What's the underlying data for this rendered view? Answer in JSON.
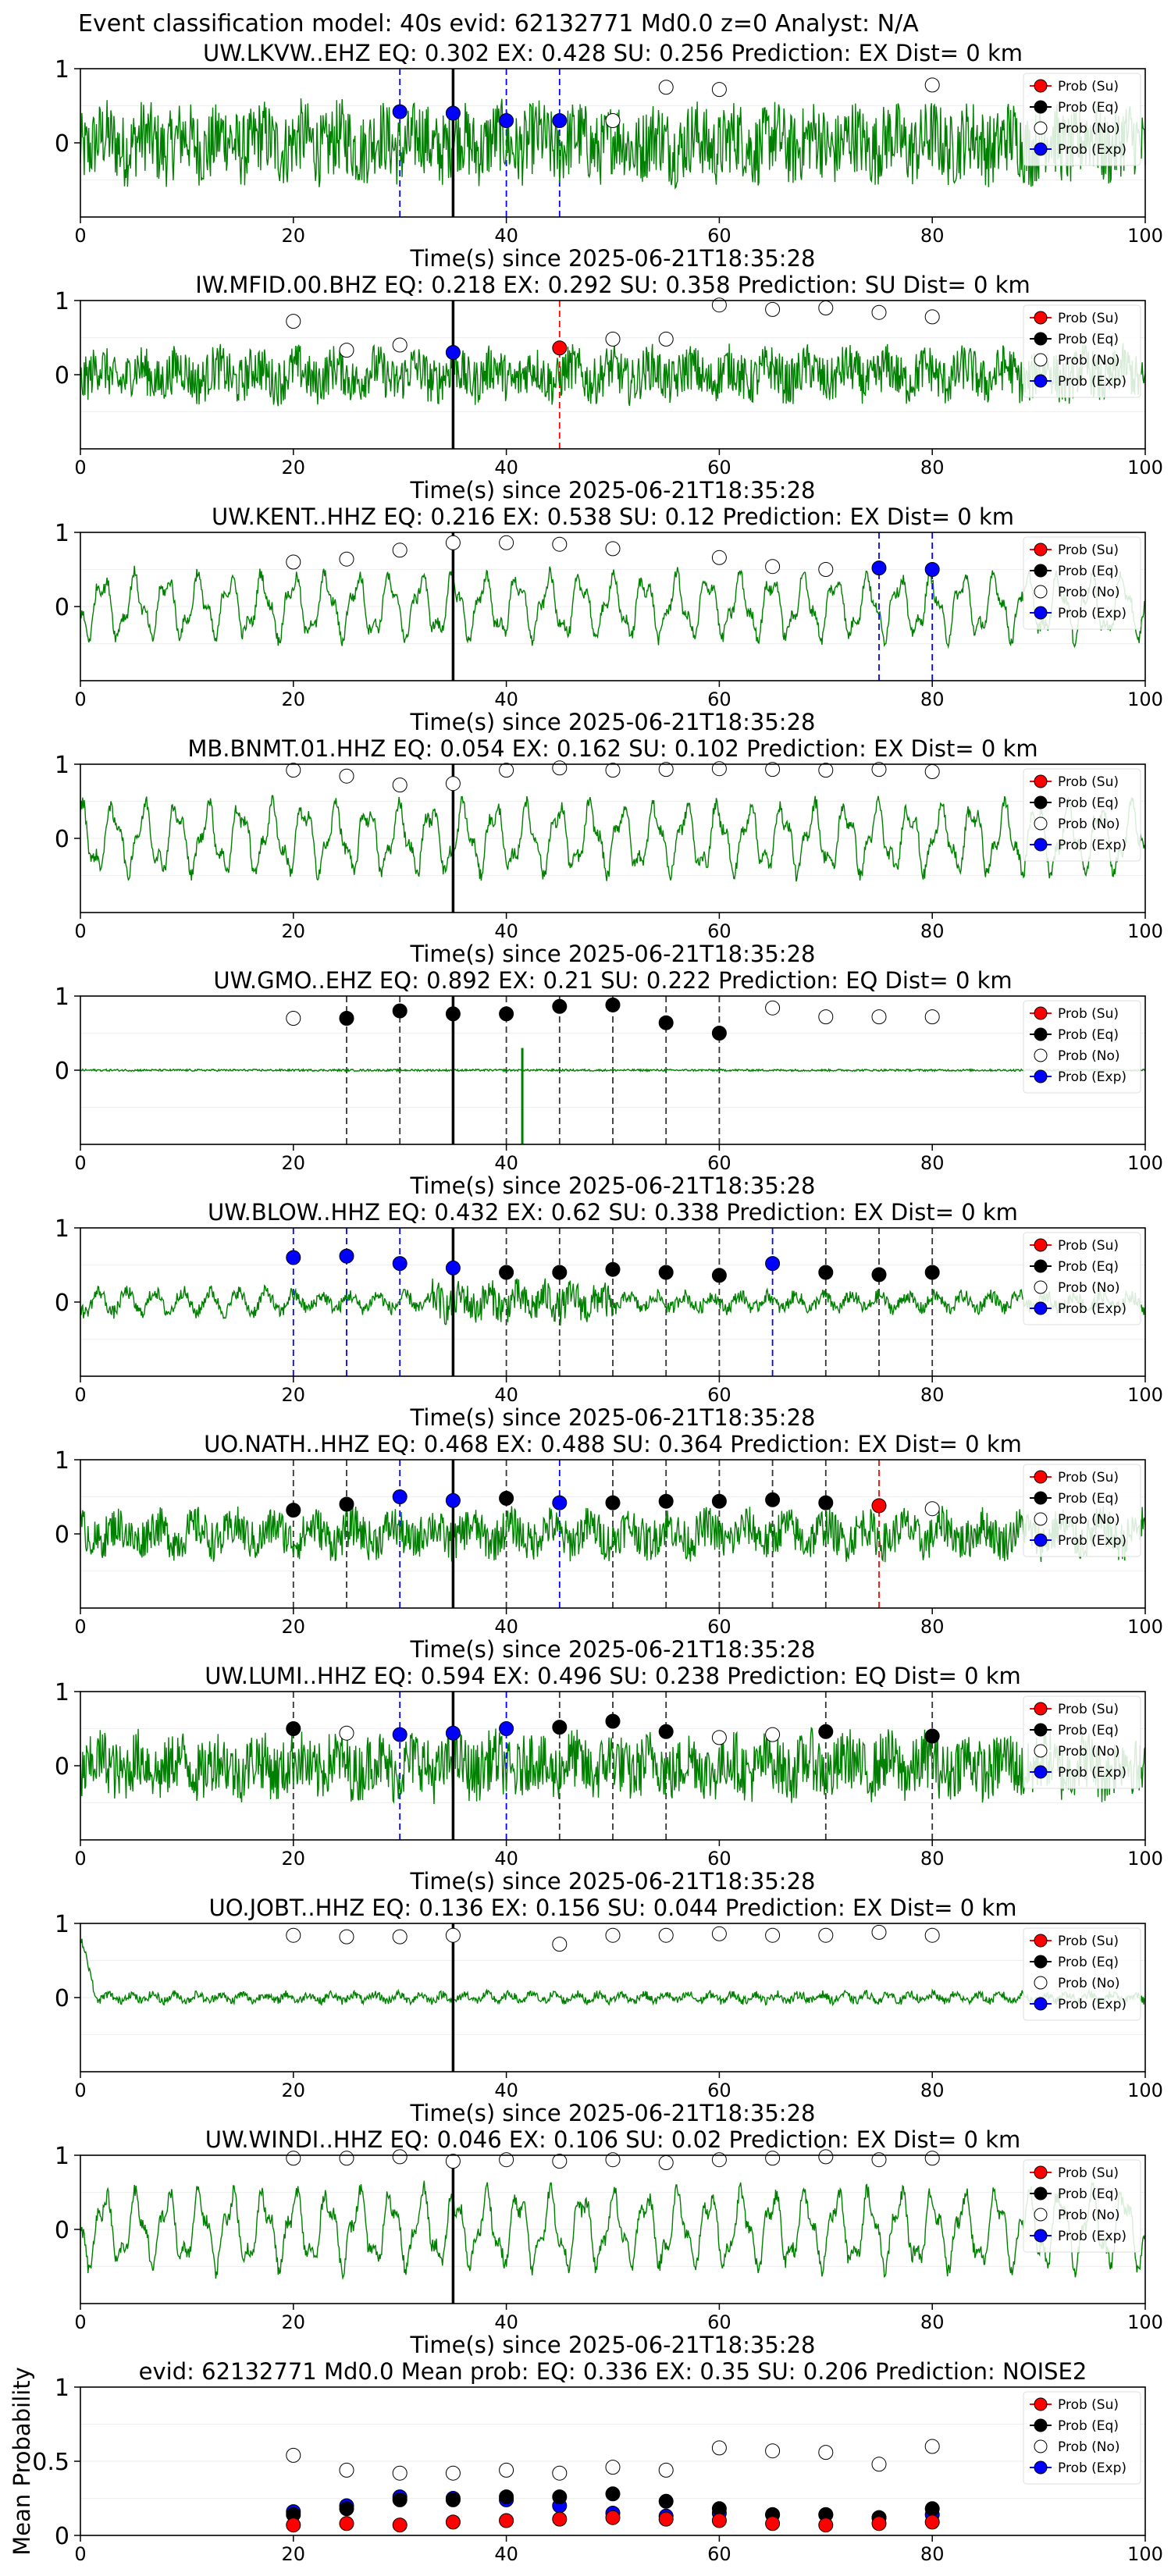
{
  "figure": {
    "title": "Event classification model: 40s evid: 62132771 Md0.0 z=0 Analyst: N/A",
    "legend_labels": [
      "Prob (Su)",
      "Prob (Eq)",
      "Prob (No)",
      "Prob (Exp)"
    ]
  },
  "colors": {
    "trace": "#008000",
    "su": "#ff0000",
    "eq": "#000000",
    "no": "#ffffff",
    "exp": "#0000ff"
  },
  "chart_data": [
    {
      "type": "line",
      "title": "UW.LKVW..EHZ   EQ: 0.302  EX: 0.428  SU: 0.256   Prediction: EX    Dist= 0 km",
      "xlabel": "Time(s) since 2025-06-21T18:35:28",
      "xlim": [
        0,
        100
      ],
      "xticks": [
        0,
        20,
        40,
        60,
        80,
        100
      ],
      "ylim": [
        -1,
        1
      ],
      "yticks": [
        1,
        0
      ],
      "pick_time": 35,
      "waveform": {
        "style": "noise",
        "amp": 0.55
      },
      "points": [
        {
          "x": 30,
          "y": 0.42,
          "class": "exp"
        },
        {
          "x": 35,
          "y": 0.4,
          "class": "exp"
        },
        {
          "x": 40,
          "y": 0.3,
          "class": "exp"
        },
        {
          "x": 45,
          "y": 0.3,
          "class": "exp"
        },
        {
          "x": 50,
          "y": 0.3,
          "class": "no"
        },
        {
          "x": 55,
          "y": 0.75,
          "class": "no"
        },
        {
          "x": 60,
          "y": 0.72,
          "class": "no"
        },
        {
          "x": 80,
          "y": 0.78,
          "class": "no"
        }
      ]
    },
    {
      "type": "line",
      "title": "IW.MFID.00.BHZ   EQ: 0.218  EX: 0.292  SU: 0.358   Prediction: SU    Dist= 0 km",
      "xlabel": "Time(s) since 2025-06-21T18:35:28",
      "xlim": [
        0,
        100
      ],
      "xticks": [
        0,
        20,
        40,
        60,
        80,
        100
      ],
      "ylim": [
        -1,
        1
      ],
      "yticks": [
        1,
        0
      ],
      "pick_time": 35,
      "waveform": {
        "style": "noise",
        "amp": 0.35
      },
      "points": [
        {
          "x": 20,
          "y": 0.72,
          "class": "no"
        },
        {
          "x": 25,
          "y": 0.33,
          "class": "no"
        },
        {
          "x": 30,
          "y": 0.4,
          "class": "no"
        },
        {
          "x": 35,
          "y": 0.3,
          "class": "exp"
        },
        {
          "x": 45,
          "y": 0.36,
          "class": "su"
        },
        {
          "x": 50,
          "y": 0.48,
          "class": "no"
        },
        {
          "x": 55,
          "y": 0.48,
          "class": "no"
        },
        {
          "x": 60,
          "y": 0.94,
          "class": "no"
        },
        {
          "x": 65,
          "y": 0.88,
          "class": "no"
        },
        {
          "x": 70,
          "y": 0.9,
          "class": "no"
        },
        {
          "x": 75,
          "y": 0.84,
          "class": "no"
        },
        {
          "x": 80,
          "y": 0.78,
          "class": "no"
        }
      ]
    },
    {
      "type": "line",
      "title": "UW.KENT..HHZ   EQ: 0.216  EX: 0.538  SU: 0.12   Prediction: EX    Dist= 0 km",
      "xlabel": "Time(s) since 2025-06-21T18:35:28",
      "xlim": [
        0,
        100
      ],
      "xticks": [
        0,
        20,
        40,
        60,
        80,
        100
      ],
      "ylim": [
        -1,
        1
      ],
      "yticks": [
        1,
        0
      ],
      "pick_time": 35,
      "waveform": {
        "style": "wave",
        "amp": 0.5
      },
      "points": [
        {
          "x": 20,
          "y": 0.6,
          "class": "no"
        },
        {
          "x": 25,
          "y": 0.64,
          "class": "no"
        },
        {
          "x": 30,
          "y": 0.76,
          "class": "no"
        },
        {
          "x": 35,
          "y": 0.86,
          "class": "no"
        },
        {
          "x": 40,
          "y": 0.86,
          "class": "no"
        },
        {
          "x": 45,
          "y": 0.84,
          "class": "no"
        },
        {
          "x": 50,
          "y": 0.78,
          "class": "no"
        },
        {
          "x": 60,
          "y": 0.66,
          "class": "no"
        },
        {
          "x": 65,
          "y": 0.54,
          "class": "no"
        },
        {
          "x": 70,
          "y": 0.5,
          "class": "no"
        },
        {
          "x": 75,
          "y": 0.52,
          "class": "exp"
        },
        {
          "x": 80,
          "y": 0.5,
          "class": "exp"
        }
      ]
    },
    {
      "type": "line",
      "title": "MB.BNMT.01.HHZ   EQ: 0.054  EX: 0.162  SU: 0.102   Prediction: EX    Dist= 0 km",
      "xlabel": "Time(s) since 2025-06-21T18:35:28",
      "xlim": [
        0,
        100
      ],
      "xticks": [
        0,
        20,
        40,
        60,
        80,
        100
      ],
      "ylim": [
        -1,
        1
      ],
      "yticks": [
        1,
        0
      ],
      "pick_time": 35,
      "waveform": {
        "style": "wave",
        "amp": 0.55
      },
      "points": [
        {
          "x": 20,
          "y": 0.92,
          "class": "no"
        },
        {
          "x": 25,
          "y": 0.84,
          "class": "no"
        },
        {
          "x": 30,
          "y": 0.72,
          "class": "no"
        },
        {
          "x": 35,
          "y": 0.74,
          "class": "no"
        },
        {
          "x": 40,
          "y": 0.92,
          "class": "no"
        },
        {
          "x": 45,
          "y": 0.95,
          "class": "no"
        },
        {
          "x": 50,
          "y": 0.92,
          "class": "no"
        },
        {
          "x": 55,
          "y": 0.93,
          "class": "no"
        },
        {
          "x": 60,
          "y": 0.94,
          "class": "no"
        },
        {
          "x": 65,
          "y": 0.93,
          "class": "no"
        },
        {
          "x": 70,
          "y": 0.92,
          "class": "no"
        },
        {
          "x": 75,
          "y": 0.93,
          "class": "no"
        },
        {
          "x": 80,
          "y": 0.9,
          "class": "no"
        }
      ]
    },
    {
      "type": "line",
      "title": "UW.GMO..EHZ   EQ: 0.892  EX: 0.21  SU: 0.222   Prediction: EQ    Dist= 0 km",
      "xlabel": "Time(s) since 2025-06-21T18:35:28",
      "xlim": [
        0,
        100
      ],
      "xticks": [
        0,
        20,
        40,
        60,
        80,
        100
      ],
      "ylim": [
        -1,
        1
      ],
      "yticks": [
        1,
        0
      ],
      "pick_time": 35,
      "waveform": {
        "style": "flat",
        "amp": 0.03,
        "spike": 41.5
      },
      "points": [
        {
          "x": 20,
          "y": 0.7,
          "class": "no"
        },
        {
          "x": 25,
          "y": 0.7,
          "class": "eq"
        },
        {
          "x": 30,
          "y": 0.8,
          "class": "eq"
        },
        {
          "x": 35,
          "y": 0.76,
          "class": "eq"
        },
        {
          "x": 40,
          "y": 0.76,
          "class": "eq"
        },
        {
          "x": 45,
          "y": 0.86,
          "class": "eq"
        },
        {
          "x": 50,
          "y": 0.88,
          "class": "eq"
        },
        {
          "x": 55,
          "y": 0.64,
          "class": "eq"
        },
        {
          "x": 60,
          "y": 0.5,
          "class": "eq"
        },
        {
          "x": 65,
          "y": 0.84,
          "class": "no"
        },
        {
          "x": 70,
          "y": 0.72,
          "class": "no"
        },
        {
          "x": 75,
          "y": 0.72,
          "class": "no"
        },
        {
          "x": 80,
          "y": 0.72,
          "class": "no"
        }
      ]
    },
    {
      "type": "line",
      "title": "UW.BLOW..HHZ   EQ: 0.432  EX: 0.62  SU: 0.338   Prediction: EX    Dist= 0 km",
      "xlabel": "Time(s) since 2025-06-21T18:35:28",
      "xlim": [
        0,
        100
      ],
      "xticks": [
        0,
        20,
        40,
        60,
        80,
        100
      ],
      "ylim": [
        -1,
        1
      ],
      "yticks": [
        1,
        0
      ],
      "pick_time": 35,
      "waveform": {
        "style": "burst",
        "amp": 0.2
      },
      "points": [
        {
          "x": 20,
          "y": 0.6,
          "class": "exp"
        },
        {
          "x": 25,
          "y": 0.62,
          "class": "exp"
        },
        {
          "x": 30,
          "y": 0.52,
          "class": "exp"
        },
        {
          "x": 35,
          "y": 0.46,
          "class": "exp"
        },
        {
          "x": 40,
          "y": 0.4,
          "class": "eq"
        },
        {
          "x": 45,
          "y": 0.4,
          "class": "eq"
        },
        {
          "x": 50,
          "y": 0.44,
          "class": "eq"
        },
        {
          "x": 55,
          "y": 0.4,
          "class": "eq"
        },
        {
          "x": 60,
          "y": 0.36,
          "class": "eq"
        },
        {
          "x": 65,
          "y": 0.52,
          "class": "exp"
        },
        {
          "x": 70,
          "y": 0.4,
          "class": "eq"
        },
        {
          "x": 75,
          "y": 0.37,
          "class": "eq"
        },
        {
          "x": 80,
          "y": 0.4,
          "class": "eq"
        }
      ]
    },
    {
      "type": "line",
      "title": "UO.NATH..HHZ   EQ: 0.468  EX: 0.488  SU: 0.364   Prediction: EX    Dist= 0 km",
      "xlabel": "Time(s) since 2025-06-21T18:35:28",
      "xlim": [
        0,
        100
      ],
      "xticks": [
        0,
        20,
        40,
        60,
        80,
        100
      ],
      "ylim": [
        -1,
        1
      ],
      "yticks": [
        1,
        0
      ],
      "pick_time": 35,
      "waveform": {
        "style": "noise",
        "amp": 0.3
      },
      "points": [
        {
          "x": 20,
          "y": 0.32,
          "class": "eq"
        },
        {
          "x": 25,
          "y": 0.4,
          "class": "eq"
        },
        {
          "x": 30,
          "y": 0.5,
          "class": "exp"
        },
        {
          "x": 35,
          "y": 0.45,
          "class": "exp"
        },
        {
          "x": 40,
          "y": 0.48,
          "class": "eq"
        },
        {
          "x": 45,
          "y": 0.42,
          "class": "exp"
        },
        {
          "x": 50,
          "y": 0.42,
          "class": "eq"
        },
        {
          "x": 55,
          "y": 0.44,
          "class": "eq"
        },
        {
          "x": 60,
          "y": 0.44,
          "class": "eq"
        },
        {
          "x": 65,
          "y": 0.46,
          "class": "eq"
        },
        {
          "x": 70,
          "y": 0.42,
          "class": "eq"
        },
        {
          "x": 75,
          "y": 0.38,
          "class": "su"
        },
        {
          "x": 80,
          "y": 0.34,
          "class": "no"
        }
      ]
    },
    {
      "type": "line",
      "title": "UW.LUMI..HHZ   EQ: 0.594  EX: 0.496  SU: 0.238   Prediction: EQ    Dist= 0 km",
      "xlabel": "Time(s) since 2025-06-21T18:35:28",
      "xlim": [
        0,
        100
      ],
      "xticks": [
        0,
        20,
        40,
        60,
        80,
        100
      ],
      "ylim": [
        -1,
        1
      ],
      "yticks": [
        1,
        0
      ],
      "pick_time": 35,
      "waveform": {
        "style": "noise",
        "amp": 0.45
      },
      "points": [
        {
          "x": 20,
          "y": 0.5,
          "class": "eq"
        },
        {
          "x": 25,
          "y": 0.44,
          "class": "no"
        },
        {
          "x": 30,
          "y": 0.42,
          "class": "exp"
        },
        {
          "x": 35,
          "y": 0.44,
          "class": "exp"
        },
        {
          "x": 40,
          "y": 0.5,
          "class": "exp"
        },
        {
          "x": 45,
          "y": 0.52,
          "class": "eq"
        },
        {
          "x": 50,
          "y": 0.6,
          "class": "eq"
        },
        {
          "x": 55,
          "y": 0.46,
          "class": "eq"
        },
        {
          "x": 60,
          "y": 0.38,
          "class": "no"
        },
        {
          "x": 65,
          "y": 0.42,
          "class": "no"
        },
        {
          "x": 70,
          "y": 0.46,
          "class": "eq"
        },
        {
          "x": 80,
          "y": 0.4,
          "class": "eq"
        }
      ]
    },
    {
      "type": "line",
      "title": "UO.JOBT..HHZ   EQ: 0.136  EX: 0.156  SU: 0.044   Prediction: EX    Dist= 0 km",
      "xlabel": "Time(s) since 2025-06-21T18:35:28",
      "xlim": [
        0,
        100
      ],
      "xticks": [
        0,
        20,
        40,
        60,
        80,
        100
      ],
      "ylim": [
        -1,
        1
      ],
      "yticks": [
        1,
        0
      ],
      "pick_time": 35,
      "waveform": {
        "style": "quiet",
        "amp": 0.12
      },
      "points": [
        {
          "x": 20,
          "y": 0.84,
          "class": "no"
        },
        {
          "x": 25,
          "y": 0.82,
          "class": "no"
        },
        {
          "x": 30,
          "y": 0.82,
          "class": "no"
        },
        {
          "x": 35,
          "y": 0.84,
          "class": "no"
        },
        {
          "x": 45,
          "y": 0.72,
          "class": "no"
        },
        {
          "x": 50,
          "y": 0.84,
          "class": "no"
        },
        {
          "x": 55,
          "y": 0.84,
          "class": "no"
        },
        {
          "x": 60,
          "y": 0.86,
          "class": "no"
        },
        {
          "x": 65,
          "y": 0.84,
          "class": "no"
        },
        {
          "x": 70,
          "y": 0.84,
          "class": "no"
        },
        {
          "x": 75,
          "y": 0.88,
          "class": "no"
        },
        {
          "x": 80,
          "y": 0.84,
          "class": "no"
        }
      ]
    },
    {
      "type": "line",
      "title": "UW.WINDI..HHZ   EQ: 0.046  EX: 0.106  SU: 0.02   Prediction: EX    Dist= 0 km",
      "xlabel": "Time(s) since 2025-06-21T18:35:28",
      "xlim": [
        0,
        100
      ],
      "xticks": [
        0,
        20,
        40,
        60,
        80,
        100
      ],
      "ylim": [
        -1,
        1
      ],
      "yticks": [
        1,
        0
      ],
      "pick_time": 35,
      "waveform": {
        "style": "wave",
        "amp": 0.6
      },
      "points": [
        {
          "x": 20,
          "y": 0.96,
          "class": "no"
        },
        {
          "x": 25,
          "y": 0.96,
          "class": "no"
        },
        {
          "x": 30,
          "y": 0.98,
          "class": "no"
        },
        {
          "x": 35,
          "y": 0.92,
          "class": "no"
        },
        {
          "x": 40,
          "y": 0.94,
          "class": "no"
        },
        {
          "x": 45,
          "y": 0.92,
          "class": "no"
        },
        {
          "x": 50,
          "y": 0.94,
          "class": "no"
        },
        {
          "x": 55,
          "y": 0.9,
          "class": "no"
        },
        {
          "x": 60,
          "y": 0.94,
          "class": "no"
        },
        {
          "x": 65,
          "y": 0.96,
          "class": "no"
        },
        {
          "x": 70,
          "y": 0.98,
          "class": "no"
        },
        {
          "x": 75,
          "y": 0.94,
          "class": "no"
        },
        {
          "x": 80,
          "y": 0.96,
          "class": "no"
        }
      ]
    },
    {
      "type": "scatter",
      "title": "evid: 62132771  Md0.0   Mean prob:   EQ: 0.336  EX: 0.35  SU: 0.206   Prediction: NOISE2",
      "xlabel": "",
      "ylabel": "Mean Probability",
      "xlim": [
        0,
        100
      ],
      "xticks": [
        0,
        20,
        40,
        60,
        80,
        100
      ],
      "ylim": [
        0,
        1
      ],
      "yticks": [
        1.0,
        0.5,
        0.0
      ],
      "x": [
        20,
        25,
        30,
        35,
        40,
        45,
        50,
        55,
        60,
        65,
        70,
        75,
        80
      ],
      "series": [
        {
          "class": "no",
          "values": [
            0.54,
            0.44,
            0.42,
            0.42,
            0.44,
            0.42,
            0.46,
            0.44,
            0.59,
            0.57,
            0.56,
            0.48,
            0.6
          ]
        },
        {
          "class": "exp",
          "values": [
            0.16,
            0.2,
            0.26,
            0.25,
            0.24,
            0.2,
            0.15,
            0.13,
            0.15,
            0.14,
            0.14,
            0.12,
            0.14
          ]
        },
        {
          "class": "eq",
          "values": [
            0.14,
            0.18,
            0.24,
            0.24,
            0.26,
            0.26,
            0.28,
            0.23,
            0.18,
            0.14,
            0.14,
            0.12,
            0.18
          ]
        },
        {
          "class": "su",
          "values": [
            0.07,
            0.08,
            0.07,
            0.09,
            0.1,
            0.11,
            0.12,
            0.11,
            0.1,
            0.08,
            0.07,
            0.08,
            0.09
          ]
        }
      ]
    }
  ]
}
